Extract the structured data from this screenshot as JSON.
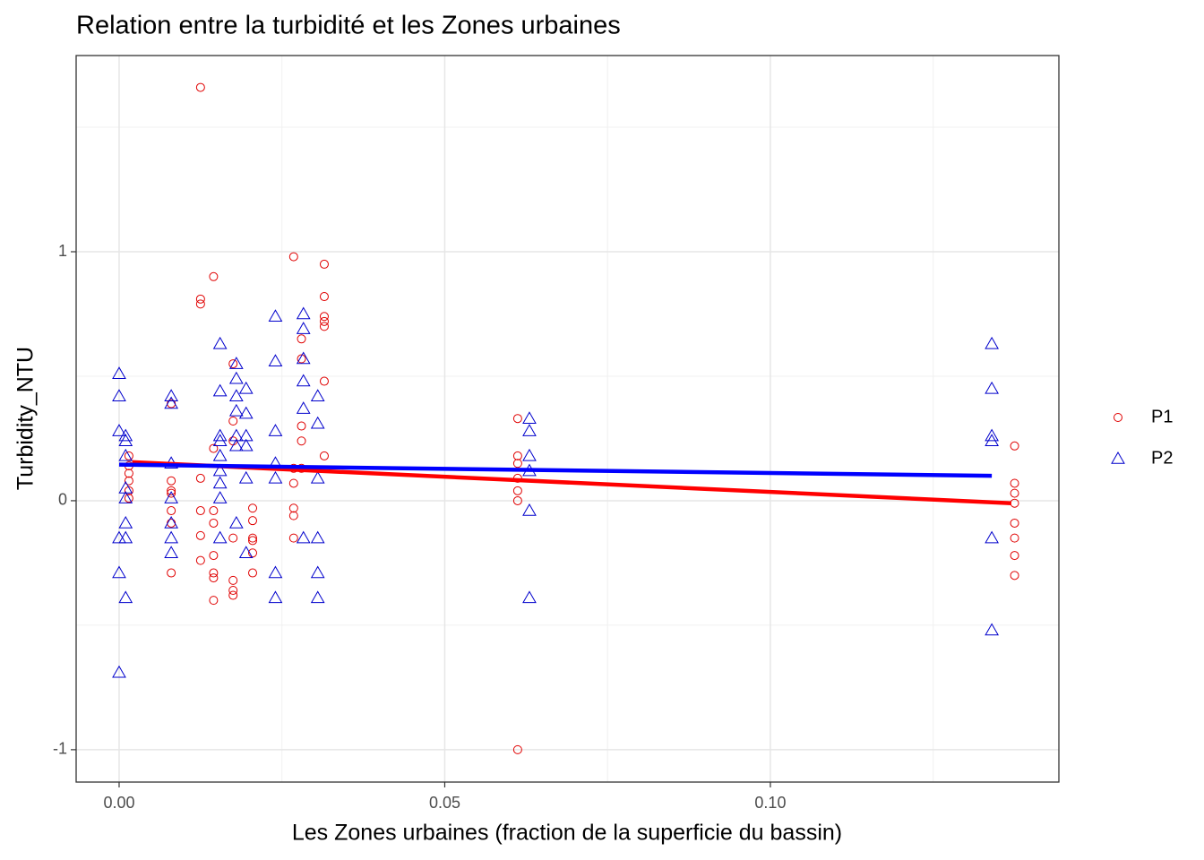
{
  "chart_data": {
    "type": "scatter",
    "title": "Relation entre la turbidité et les Zones urbaines",
    "x_label": "Les Zones urbaines (fraction de la superficie du bassin)",
    "y_label": "Turbidity_NTU",
    "xlim": [
      -0.0066,
      0.1443
    ],
    "ylim": [
      -1.13,
      1.788
    ],
    "xticks": [
      {
        "value": 0,
        "label": "0.00"
      },
      0.05,
      {
        "value": 0.1,
        "label": "0.10"
      }
    ],
    "yticks": [
      -1,
      0,
      1
    ],
    "x_minor_ticks": [
      0.025,
      0.075,
      0.125
    ],
    "y_minor_ticks": [
      -0.5,
      0.5,
      1.5
    ],
    "grid": true,
    "legend": "right",
    "series": [
      {
        "name": "P1",
        "color": "#e00000",
        "marker": "circle",
        "x": [
          0.0015,
          0.0015,
          0.0015,
          0.0015,
          0.0015,
          0.0015,
          0.008,
          0.008,
          0.008,
          0.008,
          0.008,
          0.008,
          0.008,
          0.0125,
          0.0125,
          0.0125,
          0.0125,
          0.0125,
          0.0125,
          0.0125,
          0.0145,
          0.0145,
          0.0145,
          0.0145,
          0.0145,
          0.0145,
          0.0145,
          0.0145,
          0.0175,
          0.0175,
          0.0175,
          0.0175,
          0.0175,
          0.0175,
          0.0175,
          0.0205,
          0.0205,
          0.0205,
          0.0205,
          0.0205,
          0.0205,
          0.0268,
          0.0268,
          0.0268,
          0.0268,
          0.0268,
          0.0268,
          0.028,
          0.028,
          0.028,
          0.028,
          0.028,
          0.0315,
          0.0315,
          0.0315,
          0.0315,
          0.0315,
          0.0315,
          0.0315,
          0.0612,
          0.0612,
          0.0612,
          0.0612,
          0.0612,
          0.0612,
          0.0612,
          0.1375,
          0.1375,
          0.1375,
          0.1375,
          0.1375,
          0.1375,
          0.1375,
          0.1375
        ],
        "y": [
          0.18,
          0.14,
          0.11,
          0.08,
          0.04,
          0.01,
          0.39,
          0.08,
          0.04,
          0.03,
          -0.04,
          -0.09,
          -0.29,
          1.66,
          0.81,
          0.79,
          0.09,
          -0.04,
          -0.14,
          -0.24,
          0.9,
          0.21,
          -0.04,
          -0.09,
          -0.22,
          -0.29,
          -0.31,
          -0.4,
          0.55,
          0.32,
          0.24,
          -0.15,
          -0.32,
          -0.36,
          -0.38,
          -0.03,
          -0.08,
          -0.15,
          -0.16,
          -0.21,
          -0.29,
          0.98,
          0.13,
          0.07,
          -0.03,
          -0.06,
          -0.15,
          0.65,
          0.57,
          0.3,
          0.24,
          0.13,
          0.95,
          0.82,
          0.74,
          0.72,
          0.7,
          0.48,
          0.18,
          0.33,
          0.18,
          0.15,
          0.09,
          0.04,
          0,
          -1,
          0.22,
          0.07,
          0.03,
          -0.01,
          -0.09,
          -0.15,
          -0.22,
          -0.3
        ],
        "fit": {
          "color": "#ff0000",
          "x": [
            0.002,
            0.137
          ],
          "y": [
            0.155,
            -0.01
          ]
        }
      },
      {
        "name": "P2",
        "color": "#0000cc",
        "marker": "triangle",
        "x": [
          0,
          0,
          0,
          0,
          0,
          0,
          0.001,
          0.001,
          0.001,
          0.001,
          0.001,
          0.001,
          0.001,
          0.001,
          0.008,
          0.008,
          0.008,
          0.008,
          0.008,
          0.008,
          0.008,
          0.0155,
          0.0155,
          0.0155,
          0.0155,
          0.0155,
          0.0155,
          0.0155,
          0.0155,
          0.0155,
          0.018,
          0.018,
          0.018,
          0.018,
          0.018,
          0.018,
          0.018,
          0.0195,
          0.0195,
          0.0195,
          0.0195,
          0.0195,
          0.0195,
          0.024,
          0.024,
          0.024,
          0.024,
          0.024,
          0.024,
          0.024,
          0.0283,
          0.0283,
          0.0283,
          0.0283,
          0.0283,
          0.0283,
          0.0305,
          0.0305,
          0.0305,
          0.0305,
          0.0305,
          0.0305,
          0.063,
          0.063,
          0.063,
          0.063,
          0.063,
          0.063,
          0.134,
          0.134,
          0.134,
          0.134,
          0.134,
          0.134
        ],
        "y": [
          0.51,
          0.42,
          0.28,
          -0.15,
          -0.29,
          -0.69,
          0.26,
          0.24,
          0.18,
          0.05,
          0.01,
          -0.09,
          -0.15,
          -0.39,
          0.42,
          0.39,
          0.15,
          0.01,
          -0.09,
          -0.15,
          -0.21,
          0.63,
          0.44,
          0.26,
          0.24,
          0.18,
          0.12,
          0.07,
          0.01,
          -0.15,
          0.55,
          0.49,
          0.42,
          0.36,
          0.26,
          0.22,
          -0.09,
          0.45,
          0.35,
          0.26,
          0.22,
          0.09,
          -0.21,
          0.74,
          0.56,
          0.28,
          0.15,
          0.09,
          -0.29,
          -0.39,
          0.75,
          0.69,
          0.57,
          0.48,
          0.37,
          -0.15,
          0.42,
          0.31,
          0.09,
          -0.15,
          -0.29,
          -0.39,
          0.33,
          0.28,
          0.18,
          0.12,
          -0.04,
          -0.39,
          0.63,
          0.45,
          0.26,
          0.24,
          -0.15,
          -0.52
        ],
        "fit": {
          "color": "#0000ff",
          "x": [
            0,
            0.134
          ],
          "y": [
            0.145,
            0.1
          ]
        }
      }
    ]
  }
}
